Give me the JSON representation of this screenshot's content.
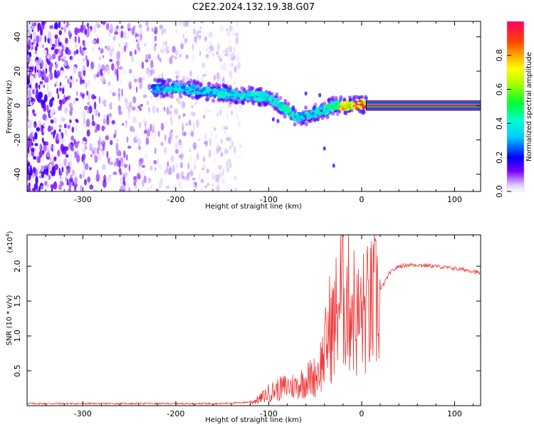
{
  "figure": {
    "title": "C2E2.2024.132.19.38.G07"
  },
  "chart_data": [
    {
      "type": "heatmap",
      "title": "C2E2.2024.132.19.38.G07",
      "xlabel": "Height of straight line (km)",
      "ylabel": "Frequency (Hz)",
      "xlim": [
        -360,
        128
      ],
      "ylim": [
        -50,
        49
      ],
      "xticks": [
        -300,
        -200,
        -100,
        0,
        100
      ],
      "yticks": [
        -40,
        -20,
        0,
        20,
        40
      ],
      "colorbar": {
        "label": "Normalized spectral amplitude",
        "range": [
          0,
          1
        ],
        "ticks": [
          0.0,
          0.2,
          0.4,
          0.6,
          0.8
        ]
      },
      "ridge": {
        "x": [
          -225,
          -200,
          -175,
          -150,
          -125,
          -100,
          -90,
          -80,
          -70,
          -60,
          -50,
          -40,
          -30,
          -20,
          -10,
          0,
          5,
          128
        ],
        "frequency": [
          10,
          10,
          9,
          7,
          6,
          5,
          1,
          -3,
          -7,
          -6,
          -4,
          -3,
          0,
          0,
          0,
          1,
          0,
          0
        ],
        "amplitude": [
          0.35,
          0.4,
          0.4,
          0.45,
          0.45,
          0.5,
          0.5,
          0.5,
          0.45,
          0.4,
          0.45,
          0.5,
          0.55,
          0.85,
          0.9,
          0.95,
          1.0,
          1.0
        ]
      },
      "noise_field": {
        "x_range": [
          -360,
          -130
        ],
        "frequency_range": [
          -50,
          49
        ],
        "amplitude_range": [
          0.0,
          0.15
        ]
      }
    },
    {
      "type": "line",
      "xlabel": "Height of straight line (km)",
      "ylabel": "SNR (10 * v/v)",
      "y_scale_label": "(x10",
      "y_scale_exp": "4",
      "y_scale_close": ")",
      "xlim": [
        -360,
        128
      ],
      "ylim": [
        0,
        2.45
      ],
      "xticks": [
        -300,
        -200,
        -100,
        0,
        100
      ],
      "yticks": [
        0.5,
        1.0,
        1.5,
        2.0
      ],
      "color": "#ee3333",
      "series": [
        {
          "x": [
            -360,
            -300,
            -250,
            -200,
            -150,
            -120,
            -110,
            -100,
            -90,
            -80,
            -70,
            -60,
            -50,
            -45,
            -40,
            -35,
            -30,
            -25,
            -20,
            -15,
            -10,
            -5,
            0,
            10,
            20,
            30,
            40,
            50,
            60,
            70,
            80,
            90,
            100,
            110,
            120,
            128
          ],
          "values": [
            0.03,
            0.03,
            0.03,
            0.03,
            0.03,
            0.05,
            0.1,
            0.2,
            0.25,
            0.3,
            0.3,
            0.4,
            0.45,
            0.6,
            0.8,
            1.2,
            1.2,
            1.6,
            1.8,
            1.6,
            1.6,
            1.3,
            1.4,
            1.5,
            1.65,
            1.9,
            2.0,
            2.02,
            2.02,
            2.01,
            2.0,
            1.98,
            1.97,
            1.95,
            1.93,
            1.9
          ]
        }
      ]
    }
  ]
}
